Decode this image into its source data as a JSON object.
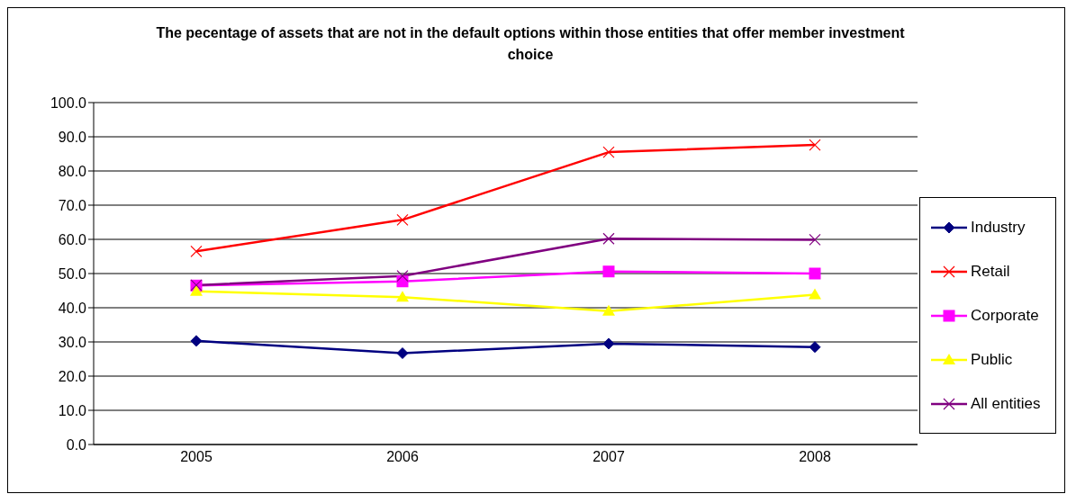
{
  "chart_data": {
    "type": "line",
    "title": "The pecentage of assets that are not in the default options within those entities that offer member investment choice",
    "categories": [
      "2005",
      "2006",
      "2007",
      "2008"
    ],
    "series": [
      {
        "name": "Industry",
        "color": "#000080",
        "marker": "diamond",
        "values": [
          30.3,
          26.7,
          29.5,
          28.5
        ]
      },
      {
        "name": "Retail",
        "color": "#ff0000",
        "marker": "cross",
        "values": [
          56.5,
          65.7,
          85.5,
          87.6
        ]
      },
      {
        "name": "Corporate",
        "color": "#ff00ff",
        "marker": "square",
        "values": [
          46.5,
          47.7,
          50.6,
          50.0
        ]
      },
      {
        "name": "Public",
        "color": "#ffff00",
        "marker": "triangle",
        "values": [
          44.8,
          43.1,
          39.0,
          43.8
        ]
      },
      {
        "name": "All entities",
        "color": "#800080",
        "marker": "cross",
        "values": [
          46.6,
          49.3,
          60.2,
          59.9
        ]
      }
    ],
    "ylim": [
      0,
      100
    ],
    "yticks": [
      {
        "value": 0,
        "label": "0.0"
      },
      {
        "value": 10,
        "label": "10.0"
      },
      {
        "value": 20,
        "label": "20.0"
      },
      {
        "value": 30,
        "label": "30.0"
      },
      {
        "value": 40,
        "label": "40.0"
      },
      {
        "value": 50,
        "label": "50.0"
      },
      {
        "value": 60,
        "label": "60.0"
      },
      {
        "value": 70,
        "label": "70.0"
      },
      {
        "value": 80,
        "label": "80.0"
      },
      {
        "value": 90,
        "label": "90.0"
      },
      {
        "value": 100,
        "label": "100.0"
      }
    ],
    "grid": "y",
    "legend": "right",
    "line_style": "solid"
  }
}
